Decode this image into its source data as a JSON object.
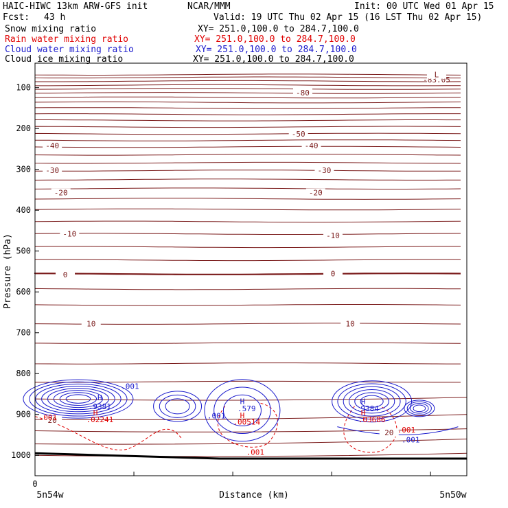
{
  "header": {
    "title": "HAIC-HIWC 13km ARW-GFS init",
    "org": "NCAR/MMM",
    "init": "Init: 00 UTC Wed 01 Apr 15",
    "fcst_label": "Fcst:",
    "fcst_value": "43 h",
    "valid": "Valid: 19 UTC Thu 02 Apr 15 (16 LST Thu 02 Apr 15)"
  },
  "fields": [
    {
      "name": "Snow mixing ratio",
      "xy": "XY= 251.0,100.0 to 284.7,100.0",
      "color": "#000000"
    },
    {
      "name": "Rain water mixing ratio",
      "xy": "XY= 251.0,100.0 to 284.7,100.0",
      "color": "#e00000"
    },
    {
      "name": "Cloud water mixing ratio",
      "xy": "XY= 251.0,100.0 to 284.7,100.0",
      "color": "#1a1acc"
    },
    {
      "name": "Cloud ice mixing ratio",
      "xy": "XY= 251.0,100.0 to 284.7,100.0",
      "color": "#000000"
    }
  ],
  "chart_data": {
    "type": "contour",
    "xlabel": "Distance (km)",
    "ylabel": "Pressure (hPa)",
    "x_ticks": [
      "0"
    ],
    "x_endpoints": [
      "5n54w",
      "5n50w"
    ],
    "y_ticks": [
      100,
      200,
      300,
      400,
      500,
      600,
      700,
      800,
      900,
      1000
    ],
    "ylim": [
      1050,
      40
    ],
    "temperature_labels": [
      {
        "label": "-83.05",
        "p": 80,
        "x": 0.93
      },
      {
        "label": "L",
        "p": 68,
        "x": 0.93
      },
      {
        "label": "-80",
        "p": 112,
        "x": 0.62
      },
      {
        "label": "-50",
        "p": 213,
        "x": 0.61
      },
      {
        "label": "-40",
        "p": 242,
        "x": 0.04
      },
      {
        "label": "-40",
        "p": 242,
        "x": 0.64
      },
      {
        "label": "-30",
        "p": 302,
        "x": 0.04
      },
      {
        "label": "-30",
        "p": 302,
        "x": 0.67
      },
      {
        "label": "-20",
        "p": 357,
        "x": 0.06
      },
      {
        "label": "-20",
        "p": 357,
        "x": 0.65
      },
      {
        "label": "-10",
        "p": 458,
        "x": 0.08
      },
      {
        "label": "-10",
        "p": 462,
        "x": 0.69
      },
      {
        "label": "0",
        "p": 558,
        "x": 0.07
      },
      {
        "label": "0",
        "p": 555,
        "x": 0.69
      },
      {
        "label": "10",
        "p": 678,
        "x": 0.13
      },
      {
        "label": "10",
        "p": 678,
        "x": 0.73
      },
      {
        "label": "20",
        "p": 914,
        "x": 0.04
      },
      {
        "label": "20",
        "p": 944,
        "x": 0.82
      }
    ],
    "maxima": [
      {
        "label": "H",
        "p": 858,
        "x": 0.15,
        "color": "#1a1acc"
      },
      {
        "label": ".9381",
        "p": 880,
        "x": 0.15,
        "color": "#1a1acc"
      },
      {
        "label": ".001",
        "p": 831,
        "x": 0.22,
        "color": "#1a1acc"
      },
      {
        "label": "H",
        "p": 895,
        "x": 0.14,
        "color": "#e00000"
      },
      {
        "label": ".02241",
        "p": 912,
        "x": 0.15,
        "color": "#e00000"
      },
      {
        "label": ".001",
        "p": 907,
        "x": 0.03,
        "color": "#e00000"
      },
      {
        "label": "H",
        "p": 868,
        "x": 0.48,
        "color": "#1a1acc"
      },
      {
        "label": ".579",
        "p": 885,
        "x": 0.49,
        "color": "#1a1acc"
      },
      {
        "label": ".001",
        "p": 903,
        "x": 0.42,
        "color": "#1a1acc"
      },
      {
        "label": "H",
        "p": 902,
        "x": 0.48,
        "color": "#e00000"
      },
      {
        "label": ".00514",
        "p": 918,
        "x": 0.49,
        "color": "#e00000"
      },
      {
        "label": ".001",
        "p": 992,
        "x": 0.51,
        "color": "#e00000"
      },
      {
        "label": "H",
        "p": 868,
        "x": 0.76,
        "color": "#1a1acc"
      },
      {
        "label": ".9384",
        "p": 885,
        "x": 0.77,
        "color": "#1a1acc"
      },
      {
        "label": "H",
        "p": 895,
        "x": 0.76,
        "color": "#e00000"
      },
      {
        "label": ".03686",
        "p": 912,
        "x": 0.78,
        "color": "#e00000"
      },
      {
        "label": ".001",
        "p": 937,
        "x": 0.86,
        "color": "#e00000"
      },
      {
        "label": ".001",
        "p": 962,
        "x": 0.87,
        "color": "#1a1acc"
      }
    ]
  }
}
